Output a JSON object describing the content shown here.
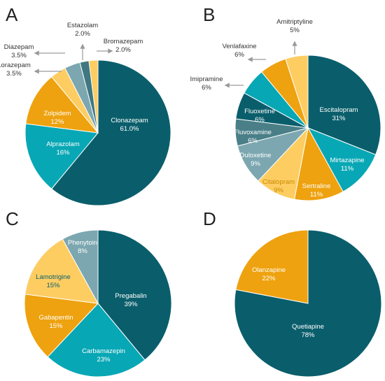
{
  "colors": {
    "dark_teal": "#0a5e6b",
    "teal": "#08a7b5",
    "orange": "#eea20f",
    "light_orange": "#fdcd62",
    "slate": "#5e8f9b",
    "light_slate": "#7ca7b0",
    "dark_slate": "#4a7f88",
    "arrow_grey": "#9a9a9a"
  },
  "chart_data": [
    {
      "type": "pie",
      "panel": "A",
      "slices": [
        {
          "name": "Clonazepam",
          "value": 61.0,
          "label": "61.0%",
          "color": "#0a5e6b",
          "text_color": "#ffffff"
        },
        {
          "name": "Alprazolam",
          "value": 16,
          "label": "16%",
          "color": "#08a7b5",
          "text_color": "#ffffff"
        },
        {
          "name": "Zolpidem",
          "value": 12,
          "label": "12%",
          "color": "#eea20f",
          "text_color": "#ffffff"
        },
        {
          "name": "Lorazepam",
          "value": 3.5,
          "label": "3.5%",
          "color": "#fdcd62",
          "text_color": "#333333",
          "external": true
        },
        {
          "name": "Diazepam",
          "value": 3.5,
          "label": "3.5%",
          "color": "#7ca7b0",
          "text_color": "#333333",
          "external": true
        },
        {
          "name": "Estazolam",
          "value": 2.0,
          "label": "2.0%",
          "color": "#3f7880",
          "text_color": "#333333",
          "external": true
        },
        {
          "name": "Bromazepam",
          "value": 2.0,
          "label": "2.0%",
          "color": "#fdcd62",
          "text_color": "#333333",
          "external": true
        }
      ]
    },
    {
      "type": "pie",
      "panel": "B",
      "slices": [
        {
          "name": "Escitalopram",
          "value": 31,
          "label": "31%",
          "color": "#0a5e6b",
          "text_color": "#ffffff"
        },
        {
          "name": "Mirtazapine",
          "value": 11,
          "label": "11%",
          "color": "#08a7b5",
          "text_color": "#ffffff"
        },
        {
          "name": "Sertraline",
          "value": 11,
          "label": "11%",
          "color": "#eea20f",
          "text_color": "#ffffff"
        },
        {
          "name": "Citalopram",
          "value": 9,
          "label": "9%",
          "color": "#fdcd62",
          "text_color": "#c98a00"
        },
        {
          "name": "Duloxetine",
          "value": 9,
          "label": "9%",
          "color": "#7ca7b0",
          "text_color": "#ffffff"
        },
        {
          "name": "Fluvoxamine",
          "value": 6,
          "label": "6%",
          "color": "#4a7f88",
          "text_color": "#ffffff"
        },
        {
          "name": "Fluoxetine",
          "value": 6,
          "label": "6%",
          "color": "#0a5e6b",
          "text_color": "#ffffff"
        },
        {
          "name": "Imipramine",
          "value": 6,
          "label": "6%",
          "color": "#08a7b5",
          "text_color": "#333333",
          "external": true
        },
        {
          "name": "Venlafaxine",
          "value": 6,
          "label": "6%",
          "color": "#eea20f",
          "text_color": "#333333",
          "external": true
        },
        {
          "name": "Amitriptyline",
          "value": 5,
          "label": "5%",
          "color": "#fdcd62",
          "text_color": "#333333",
          "external": true
        }
      ]
    },
    {
      "type": "pie",
      "panel": "C",
      "slices": [
        {
          "name": "Pregabalin",
          "value": 39,
          "label": "39%",
          "color": "#0a5e6b",
          "text_color": "#ffffff"
        },
        {
          "name": "Carbamazepin",
          "value": 23,
          "label": "23%",
          "color": "#08a7b5",
          "text_color": "#ffffff"
        },
        {
          "name": "Gabapentin",
          "value": 15,
          "label": "15%",
          "color": "#eea20f",
          "text_color": "#ffffff"
        },
        {
          "name": "Lamotrigine",
          "value": 15,
          "label": "15%",
          "color": "#fdcd62",
          "text_color": "#0a5e6b"
        },
        {
          "name": "Phenytoin",
          "value": 8,
          "label": "8%",
          "color": "#7ca7b0",
          "text_color": "#ffffff"
        }
      ]
    },
    {
      "type": "pie",
      "panel": "D",
      "slices": [
        {
          "name": "Quetiapine",
          "value": 78,
          "label": "78%",
          "color": "#0a5e6b",
          "text_color": "#ffffff"
        },
        {
          "name": "Olanzapine",
          "value": 22,
          "label": "22%",
          "color": "#eea20f",
          "text_color": "#ffffff"
        }
      ]
    }
  ]
}
